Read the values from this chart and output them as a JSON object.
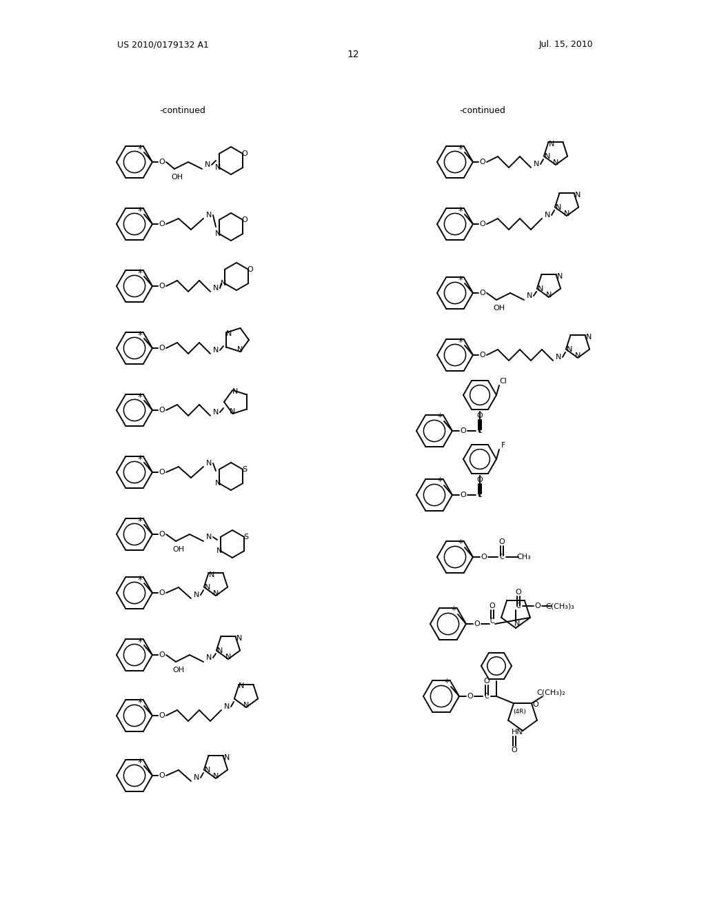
{
  "page_number": "12",
  "patent_number": "US 2010/0179132 A1",
  "patent_date": "Jul. 15, 2010",
  "background_color": "#ffffff",
  "continued_label": "-continued",
  "figsize": [
    10.24,
    13.2
  ],
  "dpi": 100
}
